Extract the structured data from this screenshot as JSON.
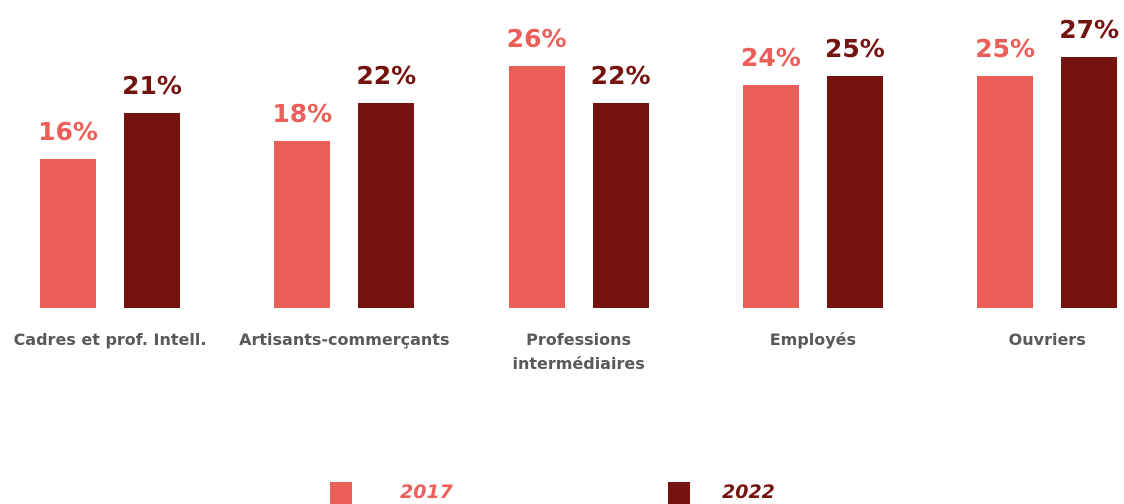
{
  "chart_data": {
    "type": "bar",
    "categories": [
      "Cadres et prof. Intell.",
      "Artisants-commerçants",
      "Professions\nintermédiaires",
      "Employés",
      "Ouvriers"
    ],
    "series": [
      {
        "name": "2017",
        "color": "#ec5f59",
        "values": [
          16,
          18,
          26,
          24,
          25
        ],
        "value_labels": [
          "16%",
          "18%",
          "26%",
          "24%",
          "25%"
        ]
      },
      {
        "name": "2022",
        "color": "#75130f",
        "values": [
          21,
          22,
          22,
          25,
          27
        ],
        "value_labels": [
          "21%",
          "22%",
          "22%",
          "25%",
          "27%"
        ]
      }
    ]
  }
}
